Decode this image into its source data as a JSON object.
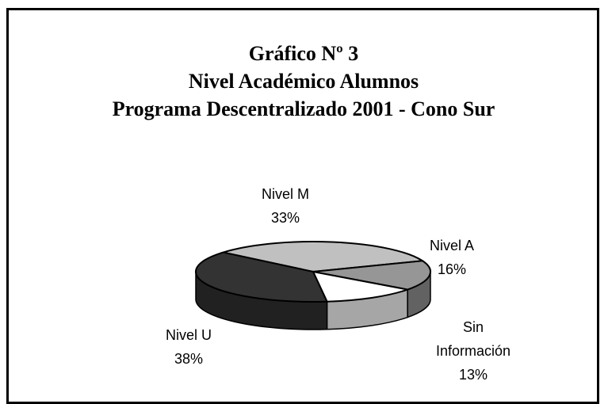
{
  "chart_data": {
    "type": "pie3d",
    "title_lines": [
      "Gráfico Nº 3",
      "Nivel Académico Alumnos",
      "Programa Descentralizado 2001 - Cono Sur"
    ],
    "categories": [
      "Nivel M",
      "Nivel A",
      "Sin Información",
      "Nivel U"
    ],
    "values": [
      33,
      16,
      13,
      38
    ],
    "value_labels": [
      "33%",
      "16%",
      "13%",
      "38%"
    ],
    "colors": [
      "#c0c0c0",
      "#969696",
      "#ffffff",
      "#333333"
    ]
  }
}
